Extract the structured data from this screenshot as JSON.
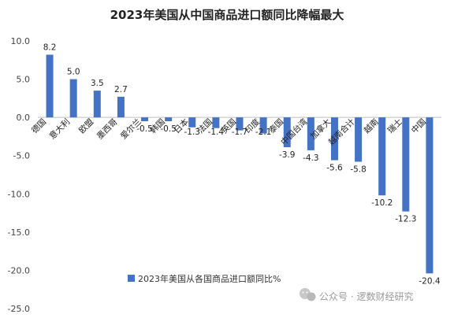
{
  "chart_data": {
    "type": "bar",
    "title": "2023年美国从中国商品进口额同比降幅最大",
    "categories": [
      "德国",
      "意大利",
      "欧盟",
      "墨西哥",
      "爱尔兰",
      "韩国",
      "日本",
      "法国",
      "英国",
      "印度",
      "泰国",
      "中国台湾",
      "加拿大",
      "越南合计",
      "越南",
      "瑞士",
      "中国"
    ],
    "series": [
      {
        "name": "2023年美国从各国商品进口额同比%",
        "values": [
          8.2,
          5.0,
          3.5,
          2.7,
          -0.5,
          -0.5,
          -1.3,
          -1.4,
          -1.7,
          -2.1,
          -3.9,
          -4.3,
          -5.6,
          -5.8,
          -10.2,
          -12.3,
          -20.4
        ]
      }
    ],
    "data_labels": [
      "8.2",
      "5.0",
      "3.5",
      "2.7",
      "-0.5",
      "-0.5",
      "-1.3",
      "-1.4",
      "-1.7",
      "-2.1",
      "-3.9",
      "-4.3",
      "-5.6",
      "-5.8",
      "-10.2",
      "-12.3",
      "-20.4"
    ],
    "y_ticks": [
      "10.0",
      "5.0",
      "0.0",
      "-5.0",
      "-10.0",
      "-15.0",
      "-20.0",
      "-25.0"
    ],
    "ylim": [
      -25,
      12
    ],
    "grid": false,
    "legend_position": "bottom-center",
    "colors": {
      "bar": "#4472C4",
      "axis": "#BFBFBF"
    }
  },
  "watermark": {
    "text": "公众号 · 逻数财经研究",
    "icon": "wechat-icon"
  }
}
